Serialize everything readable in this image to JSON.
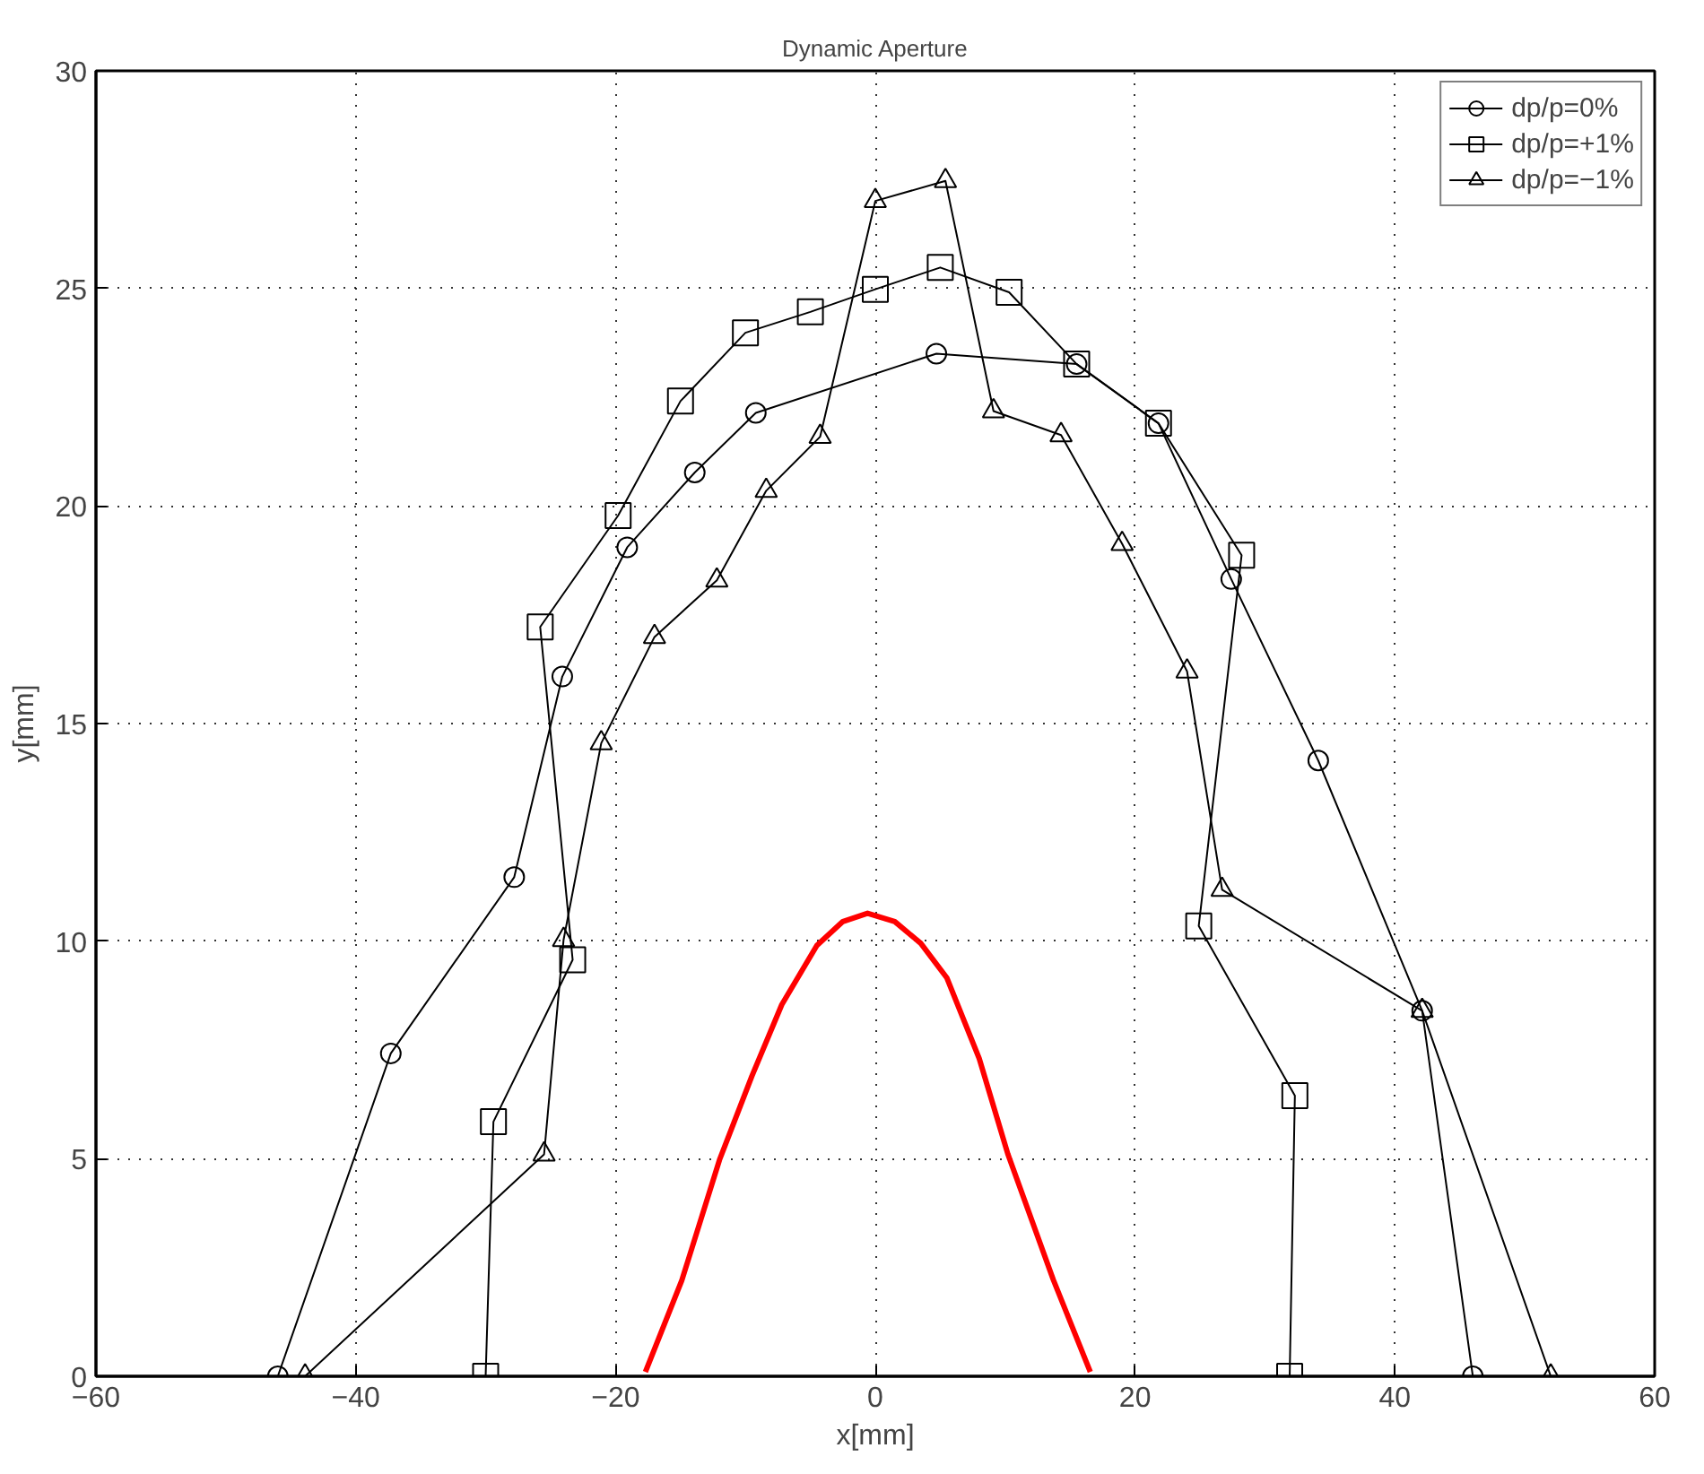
{
  "chart_data": {
    "type": "line",
    "title": "Dynamic Aperture",
    "xlabel": "x[mm]",
    "ylabel": "y[mm]",
    "xlim": [
      -60,
      60
    ],
    "ylim": [
      0,
      30
    ],
    "xticks": [
      {
        "value": -60,
        "label": "−60"
      },
      {
        "value": -40,
        "label": "−40"
      },
      {
        "value": -20,
        "label": "−20"
      },
      0,
      20,
      40,
      60
    ],
    "yticks": [
      0,
      5,
      10,
      15,
      20,
      25,
      30
    ],
    "grid": true,
    "legend": "top right",
    "series": [
      {
        "name": "dp/p=0%",
        "color": "#000000",
        "marker": "circle",
        "x": [
          -46.0,
          -37.3,
          -27.8,
          -24.1,
          -19.1,
          -13.9,
          -9.2,
          4.7,
          15.5,
          21.8,
          27.4,
          34.1,
          42.1,
          46.0
        ],
        "values": [
          0,
          7.42,
          11.47,
          16.08,
          19.05,
          20.77,
          22.14,
          23.5,
          23.26,
          21.9,
          18.32,
          14.15,
          8.4,
          0
        ]
      },
      {
        "name": "dp/p=+1%",
        "color": "#000000",
        "marker": "square",
        "x": [
          -30.0,
          -29.4,
          -23.3,
          -25.8,
          -19.8,
          -15.0,
          -10.0,
          -5.0,
          0.0,
          5.0,
          10.3,
          15.5,
          21.8,
          28.2,
          24.9,
          32.3,
          31.9
        ],
        "values": [
          0,
          5.85,
          9.57,
          17.22,
          19.78,
          22.41,
          23.98,
          24.46,
          24.98,
          25.48,
          24.91,
          23.26,
          21.9,
          18.87,
          10.35,
          6.45,
          0
        ]
      },
      {
        "name": "dp/p=−1%",
        "color": "#000000",
        "marker": "triangle",
        "x": [
          -43.9,
          -25.5,
          -24.0,
          -21.1,
          -17.0,
          -12.2,
          -8.4,
          -4.25,
          0.0,
          5.4,
          9.1,
          14.3,
          19.0,
          24.0,
          26.7,
          42.1,
          52.0
        ],
        "values": [
          0,
          5.1,
          10.03,
          14.55,
          16.99,
          18.29,
          20.35,
          21.59,
          27.01,
          27.47,
          22.18,
          21.63,
          19.13,
          16.2,
          11.18,
          8.4,
          0
        ]
      },
      {
        "color": "#ff0000",
        "marker": "none",
        "x": [
          -17.7,
          -14.9,
          -12.0,
          -9.5,
          -7.2,
          -4.5,
          -2.5,
          -0.6,
          1.5,
          3.5,
          5.5,
          8.0,
          10.2,
          13.7,
          16.55
        ],
        "values": [
          0.1,
          2.2,
          4.97,
          6.9,
          8.54,
          9.9,
          10.45,
          10.64,
          10.45,
          9.95,
          9.16,
          7.3,
          5.11,
          2.22,
          0.1
        ]
      }
    ]
  }
}
